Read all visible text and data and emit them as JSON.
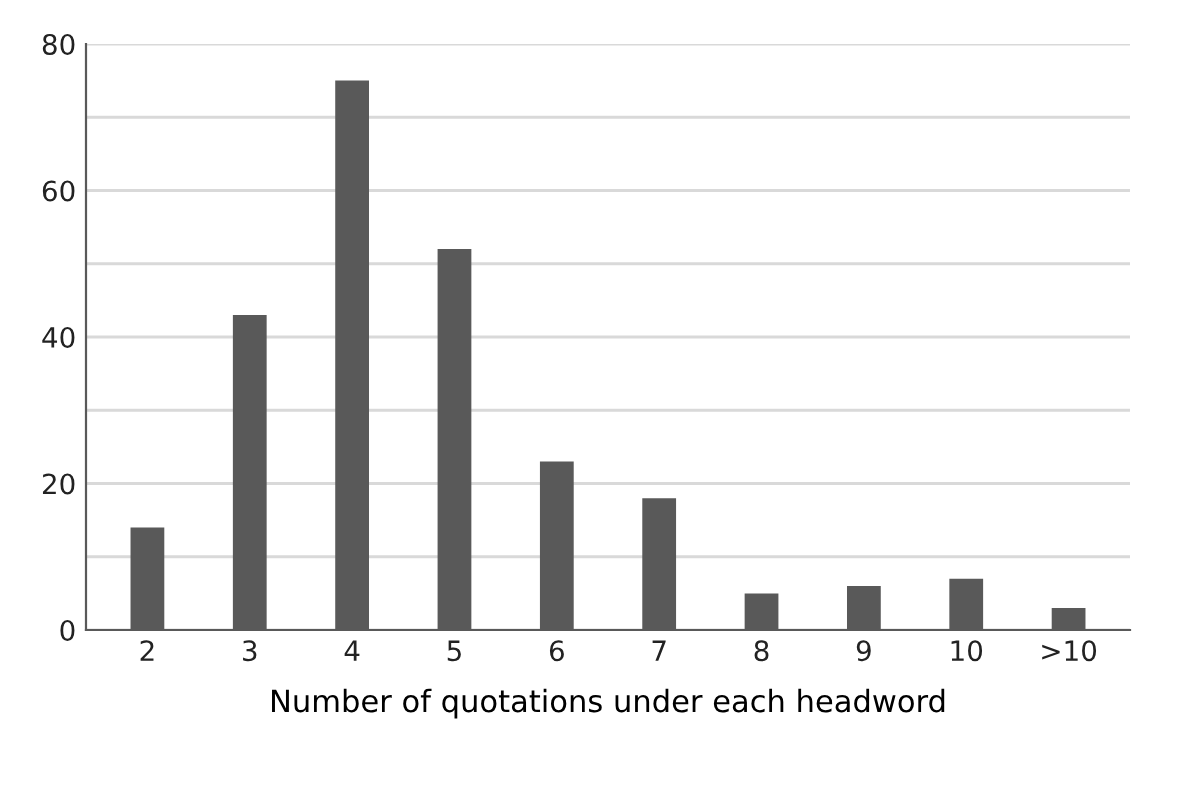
{
  "chart_data": {
    "type": "bar",
    "xlabel": "Number of quotations under each headword",
    "categories": [
      "2",
      "3",
      "4",
      "5",
      "6",
      "7",
      "8",
      "9",
      "10",
      ">10"
    ],
    "values": [
      14,
      43,
      75,
      52,
      23,
      18,
      5,
      6,
      7,
      3
    ],
    "color": "#595959",
    "ylim": [
      0,
      80
    ],
    "yticks": [
      0,
      {
        "value": 10,
        "label": null
      },
      20,
      {
        "value": 30,
        "label": null
      },
      40,
      {
        "value": 50,
        "label": null
      },
      60,
      {
        "value": 70,
        "label": null
      },
      80
    ],
    "grid": "y"
  }
}
